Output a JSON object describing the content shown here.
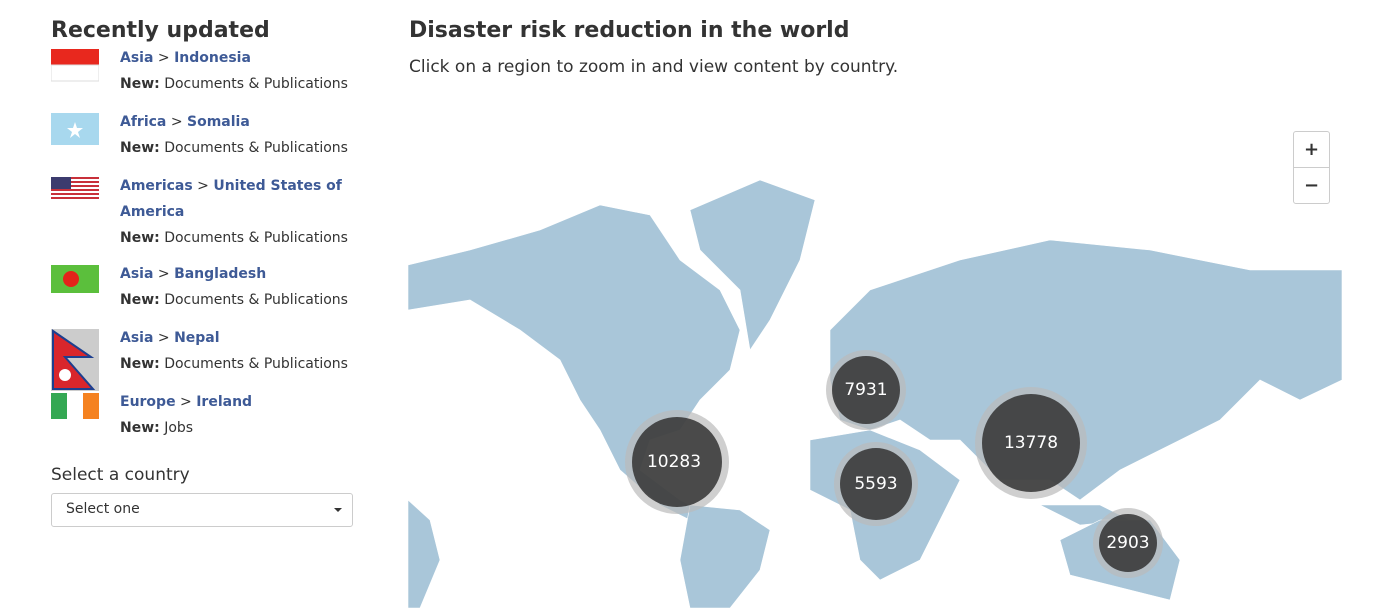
{
  "sidebar": {
    "title": "Recently updated",
    "items": [
      {
        "region": "Asia",
        "separator": ">",
        "country": "Indonesia",
        "new_label": "New:",
        "content": "Documents & Publications"
      },
      {
        "region": "Africa",
        "separator": ">",
        "country": "Somalia",
        "new_label": "New:",
        "content": "Documents & Publications"
      },
      {
        "region": "Americas",
        "separator": ">",
        "country": "United States of America",
        "new_label": "New:",
        "content": "Documents & Publications"
      },
      {
        "region": "Asia",
        "separator": ">",
        "country": "Bangladesh",
        "new_label": "New:",
        "content": "Documents & Publications"
      },
      {
        "region": "Asia",
        "separator": ">",
        "country": "Nepal",
        "new_label": "New:",
        "content": "Documents & Publications"
      },
      {
        "region": "Europe",
        "separator": ">",
        "country": "Ireland",
        "new_label": "New:",
        "content": "Jobs"
      }
    ],
    "select_label": "Select a country",
    "select_placeholder": "Select one"
  },
  "main": {
    "title": "Disaster risk reduction in the world",
    "subtitle": "Click on a region to zoom in and view content by country.",
    "zoom_in": "+",
    "zoom_out": "−",
    "clusters": [
      7931,
      10283,
      5593,
      13778,
      2903
    ]
  }
}
